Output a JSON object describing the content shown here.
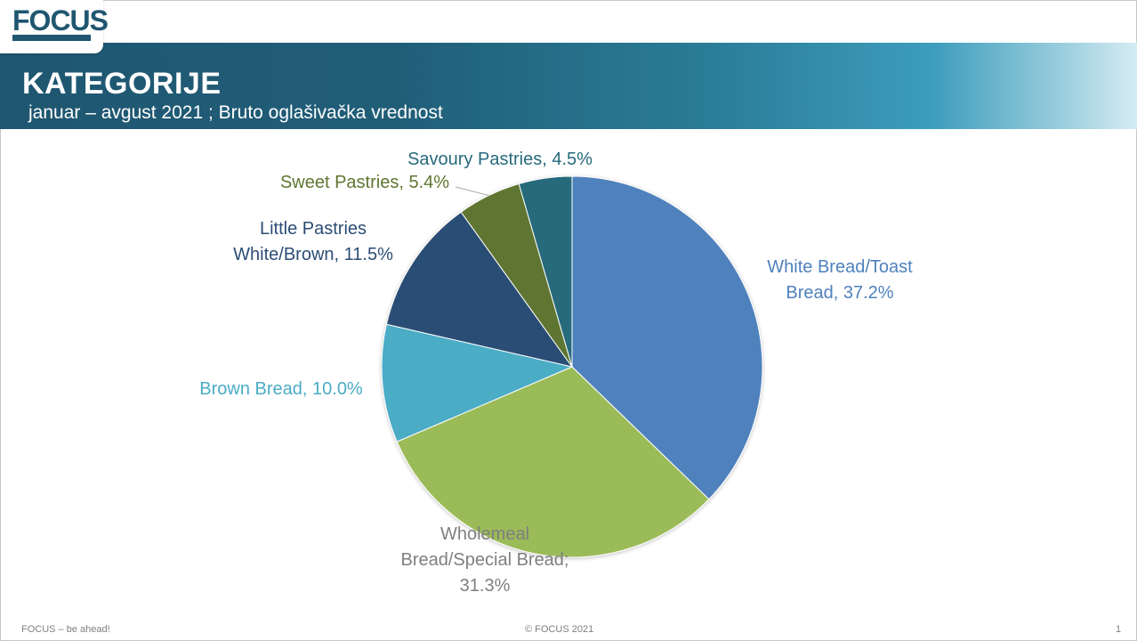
{
  "logo": {
    "text": "FOCUS"
  },
  "header": {
    "title": "KATEGORIJE",
    "subtitle": "januar – avgust 2021 ; Bruto oglašivačka vrednost"
  },
  "footer": {
    "left": "FOCUS – be ahead!",
    "center": "© FOCUS 2021",
    "page_number": "1"
  },
  "colors": {
    "header_dark": "#1f5670",
    "header_light": "#d5ecf3"
  },
  "chart_data": {
    "type": "pie",
    "title": "",
    "start_angle_deg": 0,
    "direction": "clockwise",
    "slices": [
      {
        "label_lines": [
          "White Bread/Toast",
          "Bread, 37.2%"
        ],
        "name": "White Bread/Toast Bread",
        "value": 37.2,
        "color": "#4f81bd",
        "label_color": "#4f81bd"
      },
      {
        "label_lines": [
          "Wholemeal",
          "Bread/Special Bread;",
          "31.3%"
        ],
        "name": "Wholemeal Bread/Special Bread",
        "value": 31.3,
        "color": "#9bbb59",
        "label_color": "#7f7f7f"
      },
      {
        "label_lines": [
          "Brown Bread, 10.0%"
        ],
        "name": "Brown Bread",
        "value": 10.0,
        "color": "#4bacc6",
        "label_color": "#4bacc6"
      },
      {
        "label_lines": [
          "Little Pastries",
          "White/Brown, 11.5%"
        ],
        "name": "Little Pastries White/Brown",
        "value": 11.5,
        "color": "#2c4d75",
        "label_color": "#2c4d75"
      },
      {
        "label_lines": [
          "Sweet Pastries, 5.4%"
        ],
        "name": "Sweet Pastries",
        "value": 5.4,
        "color": "#5f7530",
        "label_color": "#5f7530"
      },
      {
        "label_lines": [
          "Savoury Pastries, 4.5%"
        ],
        "name": "Savoury Pastries",
        "value": 4.5,
        "color": "#276a7c",
        "label_color": "#276a7c"
      }
    ]
  }
}
